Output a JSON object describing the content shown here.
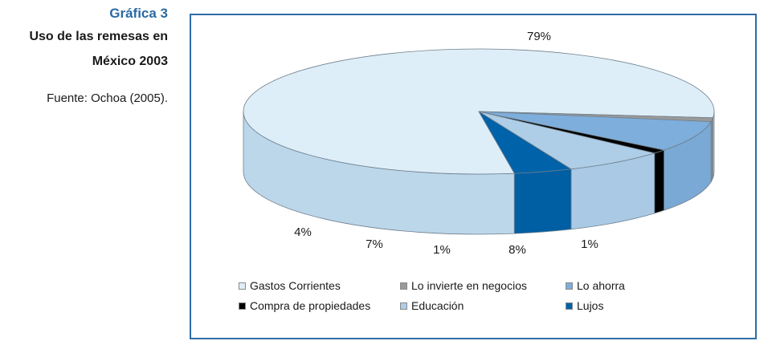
{
  "caption": {
    "number": "Gráfica 3",
    "title": "Uso de las remesas en\nMéxico 2003",
    "source": "Fuente: Ochoa (2005)."
  },
  "chart_data": {
    "type": "pie",
    "title": "Uso de las remesas en México 2003",
    "legend_placement": "bottom",
    "slices": [
      {
        "label": "Gastos Corrientes",
        "value": 79,
        "display": "79%",
        "color": "#deeef8",
        "side_color": "#bcd6ea"
      },
      {
        "label": "Lo invierte en negocios",
        "value": 1,
        "display": "1%",
        "color": "#9a9a9a",
        "side_color": "#8c8c8c"
      },
      {
        "label": "Lo ahorra",
        "value": 8,
        "display": "8%",
        "color": "#7eaedb",
        "side_color": "#7aa9d5"
      },
      {
        "label": "Compra de propiedades",
        "value": 1,
        "display": "1%",
        "color": "#000000",
        "side_color": "#000000"
      },
      {
        "label": "Educación",
        "value": 7,
        "display": "7%",
        "color": "#aecde6",
        "side_color": "#a9c9e5"
      },
      {
        "label": "Lujos",
        "value": 4,
        "display": "4%",
        "color": "#0062a8",
        "side_color": "#005ea3"
      }
    ],
    "legend": [
      {
        "label": "Gastos Corrientes",
        "color": "#deeef8"
      },
      {
        "label": "Lo invierte en negocios",
        "color": "#9a9a9a"
      },
      {
        "label": "Lo ahorra",
        "color": "#7eaedb"
      },
      {
        "label": "Compra de propiedades",
        "color": "#000000"
      },
      {
        "label": "Educación",
        "color": "#aecde6"
      },
      {
        "label": "Lujos",
        "color": "#0062a8"
      }
    ]
  }
}
